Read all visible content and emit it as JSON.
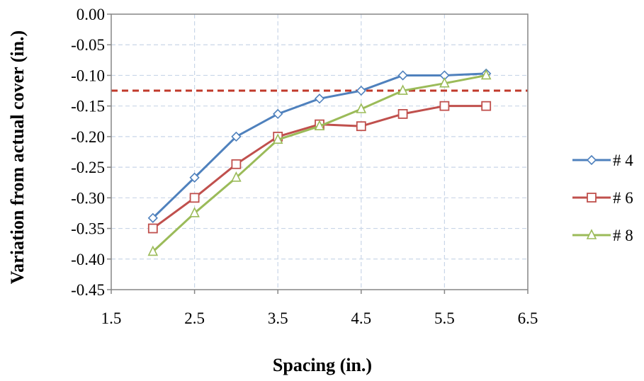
{
  "chart_data": {
    "type": "line",
    "title": "",
    "xlabel": "Spacing (in.)",
    "ylabel": "Variation from actual cover (in.)",
    "xlim": [
      1.5,
      6.5
    ],
    "ylim": [
      -0.45,
      0.0
    ],
    "xticks": [
      1.5,
      2.5,
      3.5,
      4.5,
      5.5,
      6.5
    ],
    "xtick_labels": [
      "1.5",
      "2.5",
      "3.5",
      "4.5",
      "5.5",
      "6.5"
    ],
    "yticks": [
      0.0,
      -0.05,
      -0.1,
      -0.15,
      -0.2,
      -0.25,
      -0.3,
      -0.35,
      -0.4,
      -0.45
    ],
    "ytick_labels": [
      "0.00",
      "-0.05",
      "-0.10",
      "-0.15",
      "-0.20",
      "-0.25",
      "-0.30",
      "-0.35",
      "-0.40",
      "-0.45"
    ],
    "grid": "dashed, both axes",
    "legend": "right",
    "reference_line": {
      "y": -0.125,
      "style": "dashed",
      "color": "#C0392B"
    },
    "series": [
      {
        "name": "# 4",
        "color": "#4F81BD",
        "marker": "diamond",
        "x": [
          2.0,
          2.5,
          3.0,
          3.5,
          4.0,
          4.5,
          5.0,
          5.5,
          6.0
        ],
        "y": [
          -0.333,
          -0.267,
          -0.2,
          -0.163,
          -0.138,
          -0.125,
          -0.1,
          -0.1,
          -0.097
        ]
      },
      {
        "name": "# 6",
        "color": "#C0504D",
        "marker": "square",
        "x": [
          2.0,
          2.5,
          3.0,
          3.5,
          4.0,
          4.5,
          5.0,
          5.5,
          6.0
        ],
        "y": [
          -0.35,
          -0.3,
          -0.245,
          -0.2,
          -0.18,
          -0.183,
          -0.163,
          -0.15,
          -0.15
        ]
      },
      {
        "name": "# 8",
        "color": "#9BBB59",
        "marker": "triangle",
        "x": [
          2.0,
          2.5,
          3.0,
          3.5,
          4.0,
          4.5,
          5.0,
          5.5,
          6.0
        ],
        "y": [
          -0.388,
          -0.325,
          -0.267,
          -0.205,
          -0.183,
          -0.155,
          -0.125,
          -0.113,
          -0.1
        ]
      }
    ]
  }
}
